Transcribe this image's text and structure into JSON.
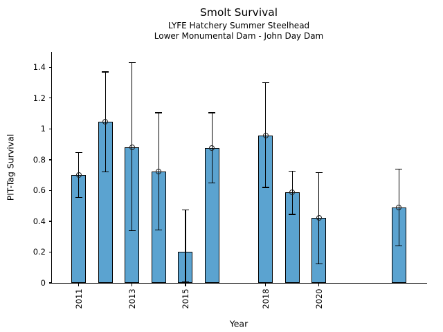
{
  "chart_data": {
    "type": "bar",
    "title": "Smolt Survival",
    "subtitle1": "LYFE Hatchery Summer Steelhead",
    "subtitle2": "Lower Monumental Dam - John Day Dam",
    "xlabel": "Year",
    "ylabel": "PIT-Tag Survival",
    "xlim": [
      2010,
      2024.05
    ],
    "ylim": [
      0,
      1.5
    ],
    "x_ticks": [
      2011,
      2013,
      2015,
      2018,
      2020
    ],
    "y_ticks": [
      0,
      0.2,
      0.4,
      0.6,
      0.8,
      1,
      1.2,
      1.4
    ],
    "grid": false,
    "legend": false,
    "bar_color": "#5ba3d0",
    "bar_edge_color": "#000000",
    "error_bar_color": "#000000",
    "points": [
      {
        "year": 2011,
        "value": 0.7,
        "ci_low": 0.555,
        "ci_high": 0.845,
        "marker": true
      },
      {
        "year": 2012,
        "value": 1.045,
        "ci_low": 0.72,
        "ci_high": 1.37,
        "marker": true
      },
      {
        "year": 2013,
        "value": 0.88,
        "ci_low": 0.34,
        "ci_high": 1.43,
        "marker": true
      },
      {
        "year": 2014,
        "value": 0.725,
        "ci_low": 0.345,
        "ci_high": 1.105,
        "marker": true
      },
      {
        "year": 2015,
        "value": 0.2,
        "ci_low": 0.005,
        "ci_high": 0.475,
        "marker": false
      },
      {
        "year": 2016,
        "value": 0.875,
        "ci_low": 0.65,
        "ci_high": 1.105,
        "marker": true
      },
      {
        "year": 2018,
        "value": 0.955,
        "ci_low": 0.62,
        "ci_high": 1.3,
        "marker": true
      },
      {
        "year": 2019,
        "value": 0.59,
        "ci_low": 0.445,
        "ci_high": 0.725,
        "marker": true
      },
      {
        "year": 2020,
        "value": 0.42,
        "ci_low": 0.125,
        "ci_high": 0.715,
        "marker": true
      },
      {
        "year": 2023,
        "value": 0.49,
        "ci_low": 0.24,
        "ci_high": 0.74,
        "marker": true
      }
    ]
  }
}
